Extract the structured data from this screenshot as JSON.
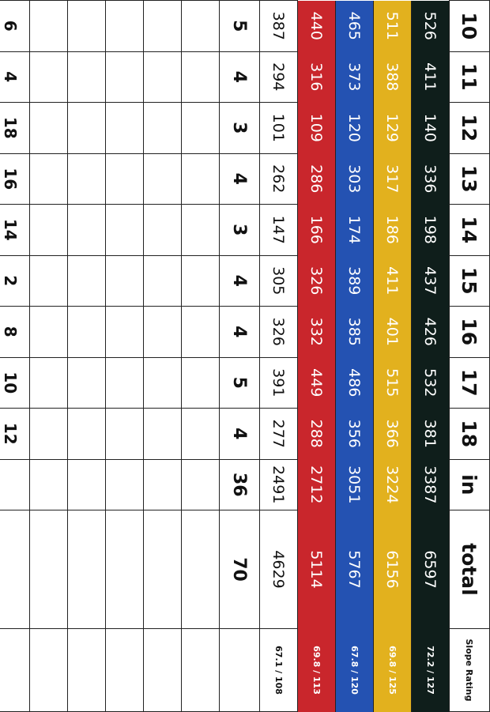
{
  "header": {
    "holes": [
      "10",
      "11",
      "12",
      "13",
      "14",
      "15",
      "16",
      "17",
      "18"
    ],
    "in": "in",
    "total": "total",
    "slope": "Slope Rating"
  },
  "tees": [
    {
      "color": "#0f1e1b",
      "yardages": [
        "526",
        "411",
        "140",
        "336",
        "198",
        "437",
        "426",
        "532",
        "381"
      ],
      "in": "3387",
      "total": "6597",
      "slope": "72.2 / 127"
    },
    {
      "color": "#e2b11e",
      "yardages": [
        "511",
        "388",
        "129",
        "317",
        "186",
        "411",
        "401",
        "515",
        "366"
      ],
      "in": "3224",
      "total": "6156",
      "slope": "69.8 / 125"
    },
    {
      "color": "#2452b2",
      "yardages": [
        "465",
        "373",
        "120",
        "303",
        "174",
        "389",
        "385",
        "486",
        "356"
      ],
      "in": "3051",
      "total": "5767",
      "slope": "67.8 / 120"
    },
    {
      "color": "#c9262c",
      "yardages": [
        "440",
        "316",
        "109",
        "286",
        "166",
        "326",
        "332",
        "449",
        "288"
      ],
      "in": "2712",
      "total": "5114",
      "slope": "69.8 / 113"
    },
    {
      "color": "#ffffff",
      "yardages": [
        "387",
        "294",
        "101",
        "262",
        "147",
        "305",
        "326",
        "391",
        "277"
      ],
      "in": "2491",
      "total": "4629",
      "slope": "67.1 / 108"
    }
  ],
  "par": {
    "values": [
      "5",
      "4",
      "3",
      "4",
      "3",
      "4",
      "4",
      "5",
      "4"
    ],
    "in": "36",
    "total": "70"
  },
  "blank_rows": 5,
  "handicap": [
    "6",
    "4",
    "18",
    "16",
    "14",
    "2",
    "8",
    "10",
    "12"
  ]
}
